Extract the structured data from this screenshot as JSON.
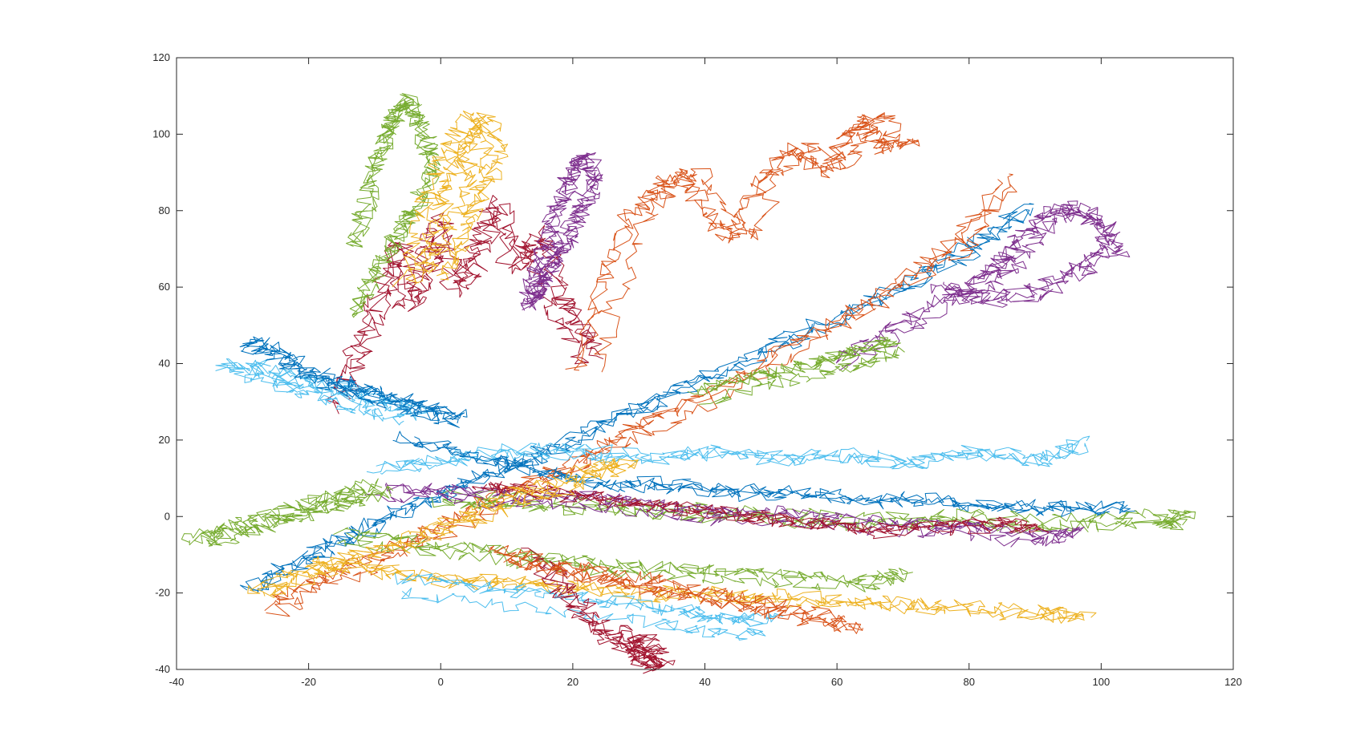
{
  "chart_data": {
    "type": "line",
    "title": "",
    "xlabel": "",
    "ylabel": "",
    "xlim": [
      -40,
      120
    ],
    "ylim": [
      -40,
      120
    ],
    "xticks": [
      -40,
      -20,
      0,
      20,
      40,
      60,
      80,
      100,
      120
    ],
    "yticks": [
      -40,
      -20,
      0,
      20,
      40,
      60,
      80,
      100,
      120
    ],
    "xtick_labels": [
      "-40",
      "-20",
      "0",
      "20",
      "40",
      "60",
      "80",
      "100",
      "120"
    ],
    "ytick_labels": [
      "-40",
      "-20",
      "0",
      "20",
      "40",
      "60",
      "80",
      "100",
      "120"
    ],
    "grid": false,
    "legend": "none",
    "colors": [
      "#0072BD",
      "#D95319",
      "#EDB120",
      "#7E2F8E",
      "#77AC30",
      "#4DBEEE",
      "#A2142F"
    ],
    "series": [
      {
        "color": "#A2142F",
        "x": [
          -15,
          -12,
          -8,
          -6,
          -4,
          -2,
          0,
          3,
          6,
          9,
          12,
          15,
          18,
          21,
          24
        ],
        "y": [
          30,
          45,
          60,
          72,
          55,
          65,
          78,
          60,
          70,
          82,
          66,
          74,
          58,
          50,
          42
        ]
      },
      {
        "color": "#0072BD",
        "x": [
          -28,
          -22,
          -15,
          -8,
          0,
          8,
          16,
          24,
          32,
          42,
          52,
          62,
          72,
          82,
          90
        ],
        "y": [
          -20,
          -14,
          -8,
          -2,
          4,
          10,
          15,
          22,
          28,
          36,
          44,
          52,
          60,
          70,
          80
        ]
      },
      {
        "color": "#D95319",
        "x": [
          -25,
          -18,
          -10,
          -2,
          6,
          14,
          22,
          30,
          40,
          50,
          60,
          70,
          80,
          86
        ],
        "y": [
          -24,
          -18,
          -12,
          -6,
          2,
          8,
          14,
          22,
          30,
          40,
          50,
          60,
          72,
          88
        ]
      },
      {
        "color": "#D95319",
        "x": [
          22,
          26,
          30,
          34,
          38,
          42,
          46,
          50,
          55,
          60,
          63,
          66,
          68,
          70
        ],
        "y": [
          38,
          60,
          78,
          86,
          90,
          78,
          72,
          88,
          96,
          90,
          100,
          104,
          96,
          98
        ]
      },
      {
        "color": "#7E2F8E",
        "x": [
          60,
          68,
          76,
          82,
          86,
          88,
          92,
          96,
          100,
          102,
          96,
          90,
          82,
          76
        ],
        "y": [
          40,
          48,
          56,
          62,
          66,
          72,
          78,
          80,
          76,
          70,
          64,
          58,
          56,
          60
        ]
      },
      {
        "color": "#4DBEEE",
        "x": [
          -10,
          0,
          10,
          20,
          30,
          40,
          50,
          60,
          70,
          80,
          90,
          96
        ],
        "y": [
          14,
          16,
          18,
          18,
          16,
          18,
          16,
          17,
          15,
          18,
          16,
          20
        ]
      },
      {
        "color": "#0072BD",
        "x": [
          -5,
          5,
          15,
          25,
          35,
          45,
          55,
          65,
          75,
          85,
          95,
          105
        ],
        "y": [
          20,
          16,
          12,
          8,
          8,
          6,
          6,
          4,
          4,
          2,
          2,
          2
        ]
      },
      {
        "color": "#77AC30",
        "x": [
          0,
          10,
          20,
          30,
          40,
          50,
          60,
          70,
          80,
          90,
          100,
          110,
          112
        ],
        "y": [
          5,
          4,
          3,
          2,
          1,
          0,
          -1,
          -1,
          0,
          -2,
          -1,
          0,
          -1
        ]
      },
      {
        "color": "#7E2F8E",
        "x": [
          -10,
          0,
          10,
          20,
          30,
          40,
          50,
          60,
          70,
          80,
          90,
          95
        ],
        "y": [
          6,
          6,
          4,
          4,
          2,
          0,
          0,
          -2,
          -3,
          -4,
          -6,
          -5
        ]
      },
      {
        "color": "#A2142F",
        "x": [
          5,
          15,
          25,
          35,
          45,
          55,
          65,
          75,
          85,
          90
        ],
        "y": [
          8,
          6,
          4,
          2,
          0,
          -2,
          -4,
          -3,
          -2,
          -4
        ]
      },
      {
        "color": "#EDB120",
        "x": [
          -20,
          -10,
          0,
          10,
          20,
          30,
          40,
          50,
          60,
          70,
          80,
          90,
          97
        ],
        "y": [
          -12,
          -14,
          -16,
          -17,
          -18,
          -20,
          -20,
          -21,
          -22,
          -23,
          -24,
          -25,
          -26
        ]
      },
      {
        "color": "#77AC30",
        "x": [
          -15,
          -5,
          5,
          15,
          25,
          35,
          45,
          55,
          65,
          70
        ],
        "y": [
          -6,
          -8,
          -10,
          -12,
          -14,
          -15,
          -16,
          -17,
          -18,
          -16
        ]
      },
      {
        "color": "#4DBEEE",
        "x": [
          -5,
          5,
          15,
          25,
          35,
          40,
          46,
          50
        ],
        "y": [
          -18,
          -20,
          -22,
          -24,
          -26,
          -28,
          -29,
          -28
        ]
      },
      {
        "color": "#EDB120",
        "x": [
          -28,
          -22,
          -15,
          -8,
          0,
          6,
          12,
          18,
          24,
          28
        ],
        "y": [
          -20,
          -16,
          -12,
          -8,
          -3,
          1,
          5,
          8,
          12,
          14
        ]
      },
      {
        "color": "#77AC30",
        "x": [
          -12,
          -10,
          -8,
          -6,
          -4,
          -2,
          0,
          -3,
          -6,
          -9,
          -12
        ],
        "y": [
          70,
          84,
          96,
          104,
          108,
          100,
          90,
          80,
          72,
          62,
          52
        ]
      },
      {
        "color": "#EDB120",
        "x": [
          -4,
          -2,
          0,
          2,
          4,
          6,
          8,
          6,
          4,
          2,
          0
        ],
        "y": [
          60,
          72,
          84,
          92,
          98,
          104,
          94,
          86,
          78,
          70,
          62
        ]
      },
      {
        "color": "#7E2F8E",
        "x": [
          12,
          14,
          16,
          18,
          20,
          22,
          20,
          18,
          16,
          14,
          12
        ],
        "y": [
          56,
          66,
          78,
          86,
          94,
          88,
          80,
          72,
          66,
          60,
          54
        ]
      },
      {
        "color": "#77AC30",
        "x": [
          -36,
          -32,
          -28,
          -24,
          -20,
          -16,
          -12,
          -8
        ],
        "y": [
          -6,
          -4,
          -2,
          0,
          2,
          4,
          6,
          8
        ]
      },
      {
        "color": "#4DBEEE",
        "x": [
          -32,
          -28,
          -24,
          -20,
          -16,
          -12,
          -8,
          -4
        ],
        "y": [
          40,
          38,
          36,
          34,
          32,
          30,
          28,
          26
        ]
      },
      {
        "color": "#0072BD",
        "x": [
          -30,
          -26,
          -22,
          -18,
          -14,
          -10,
          -6,
          -2,
          2
        ],
        "y": [
          46,
          44,
          40,
          36,
          34,
          32,
          30,
          28,
          26
        ]
      },
      {
        "color": "#A2142F",
        "x": [
          15,
          18,
          22,
          26,
          30,
          32,
          31,
          29
        ],
        "y": [
          -10,
          -18,
          -26,
          -32,
          -36,
          -38,
          -34,
          -30
        ]
      },
      {
        "color": "#77AC30",
        "x": [
          40,
          46,
          52,
          58,
          62,
          66,
          70
        ],
        "y": [
          30,
          34,
          36,
          38,
          40,
          42,
          44
        ]
      },
      {
        "color": "#D95319",
        "x": [
          8,
          14,
          20,
          26,
          32,
          38,
          44,
          50,
          56,
          62
        ],
        "y": [
          -10,
          -12,
          -14,
          -16,
          -18,
          -20,
          -22,
          -24,
          -26,
          -28
        ]
      }
    ]
  }
}
